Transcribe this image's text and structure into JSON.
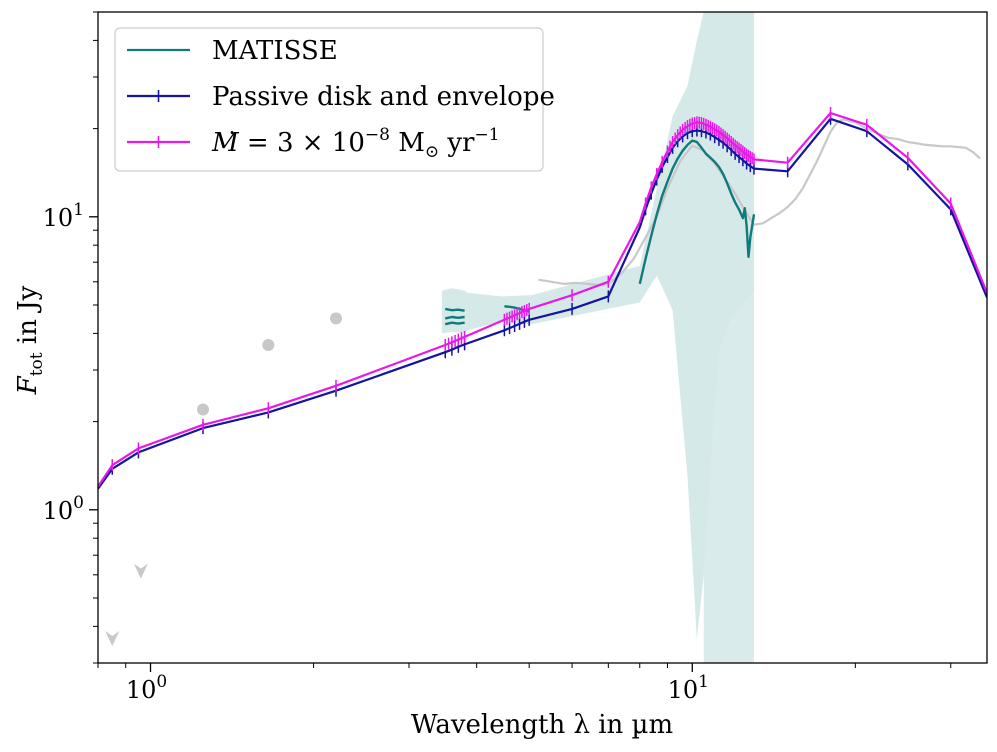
{
  "chart_data": {
    "type": "line",
    "xscale": "log",
    "yscale": "log",
    "xlim": [
      0.8,
      35
    ],
    "ylim": [
      0.3,
      50
    ],
    "xlabel": "Wavelength λ in µm",
    "ylabel": "F_tot in Jy",
    "ylabel_main": "F",
    "ylabel_sub": "tot",
    "ylabel_rest": " in Jy",
    "xticks": [
      {
        "value": 1,
        "base": "10",
        "exp": "0"
      },
      {
        "value": 10,
        "base": "10",
        "exp": "1"
      }
    ],
    "yticks": [
      {
        "value": 1,
        "base": "10",
        "exp": "0"
      },
      {
        "value": 10,
        "base": "10",
        "exp": "1"
      }
    ],
    "legend": {
      "location": "upper-left",
      "entries": [
        {
          "label": "MATISSE",
          "color": "#117a7a",
          "marker": "none"
        },
        {
          "label": "Passive disk and envelope",
          "color": "#1414a0",
          "marker": "|"
        },
        {
          "label_parts": [
            "M",
            "̇ = 3 × 10",
            "−8",
            " M",
            "⊙",
            " yr",
            "−1"
          ],
          "color": "#e818e8",
          "marker": "|"
        }
      ]
    },
    "colors": {
      "matisse": "#117a7a",
      "matisse_band": "#d5e9e9",
      "passive": "#1414a0",
      "accretion": "#e818e8",
      "observed": "#c8c8c8"
    },
    "series": [
      {
        "name": "Passive disk and envelope",
        "color": "#1414a0",
        "segments": [
          [
            [
              0.8,
              1.18
            ],
            [
              0.85,
              1.38
            ],
            [
              0.95,
              1.57
            ],
            [
              1.25,
              1.9
            ],
            [
              1.65,
              2.15
            ],
            [
              2.2,
              2.55
            ],
            [
              3.5,
              3.45
            ],
            [
              3.6,
              3.52
            ],
            [
              3.7,
              3.6
            ],
            [
              3.8,
              3.67
            ],
            [
              4.5,
              4.1
            ],
            [
              4.6,
              4.17
            ],
            [
              4.7,
              4.24
            ],
            [
              4.8,
              4.31
            ],
            [
              4.9,
              4.38
            ],
            [
              5.0,
              4.45
            ],
            [
              6.0,
              4.85
            ],
            [
              7.0,
              5.35
            ],
            [
              8.0,
              9.2
            ],
            [
              8.2,
              10.6
            ],
            [
              8.4,
              12.0
            ],
            [
              8.6,
              13.4
            ],
            [
              8.8,
              14.8
            ],
            [
              9.0,
              16.0
            ],
            [
              9.2,
              17.2
            ],
            [
              9.4,
              18.1
            ],
            [
              9.6,
              18.8
            ],
            [
              9.8,
              19.3
            ],
            [
              10.0,
              19.6
            ],
            [
              10.2,
              19.7
            ],
            [
              10.4,
              19.6
            ],
            [
              10.6,
              19.4
            ],
            [
              10.8,
              19.1
            ],
            [
              11.0,
              18.7
            ],
            [
              11.2,
              18.3
            ],
            [
              11.4,
              17.9
            ],
            [
              11.6,
              17.4
            ],
            [
              11.8,
              16.9
            ],
            [
              12.0,
              16.4
            ],
            [
              12.2,
              16.0
            ],
            [
              12.4,
              15.6
            ],
            [
              12.6,
              15.2
            ],
            [
              12.8,
              14.9
            ],
            [
              13.0,
              14.6
            ],
            [
              15.0,
              14.3
            ],
            [
              18.0,
              21.6
            ],
            [
              21.0,
              19.6
            ],
            [
              25.0,
              15.1
            ],
            [
              30.0,
              10.6
            ],
            [
              35.0,
              5.3
            ]
          ]
        ],
        "ticks": [
          0.85,
          0.95,
          1.25,
          1.65,
          2.2,
          3.5,
          3.6,
          3.7,
          3.8,
          4.5,
          4.6,
          4.7,
          4.8,
          4.9,
          5.0,
          6.0,
          7.0,
          8.2,
          8.4,
          8.6,
          8.8,
          9.0,
          9.2,
          9.4,
          9.6,
          9.8,
          10.0,
          10.2,
          10.4,
          10.6,
          10.8,
          11.0,
          11.2,
          11.4,
          11.6,
          11.8,
          12.0,
          12.2,
          12.4,
          12.6,
          12.8,
          13.0,
          15.0,
          18.0,
          21.0,
          25.0,
          30.0
        ]
      },
      {
        "name": "Ṁ = 3 × 10⁻⁸ M⊙ yr⁻¹",
        "color": "#e818e8",
        "segments": [
          [
            [
              0.8,
              1.2
            ],
            [
              0.85,
              1.42
            ],
            [
              0.95,
              1.62
            ],
            [
              1.25,
              1.95
            ],
            [
              1.65,
              2.22
            ],
            [
              2.2,
              2.65
            ],
            [
              3.5,
              3.65
            ],
            [
              3.6,
              3.73
            ],
            [
              3.7,
              3.81
            ],
            [
              3.8,
              3.89
            ],
            [
              4.5,
              4.45
            ],
            [
              4.6,
              4.53
            ],
            [
              4.7,
              4.61
            ],
            [
              4.8,
              4.69
            ],
            [
              4.9,
              4.77
            ],
            [
              5.0,
              4.85
            ],
            [
              6.0,
              5.4
            ],
            [
              7.0,
              6.0
            ],
            [
              8.0,
              9.6
            ],
            [
              8.2,
              11.1
            ],
            [
              8.4,
              12.6
            ],
            [
              8.6,
              14.0
            ],
            [
              8.8,
              15.4
            ],
            [
              9.0,
              16.7
            ],
            [
              9.2,
              18.0
            ],
            [
              9.4,
              19.0
            ],
            [
              9.6,
              19.8
            ],
            [
              9.8,
              20.4
            ],
            [
              10.0,
              20.8
            ],
            [
              10.2,
              21.0
            ],
            [
              10.4,
              20.9
            ],
            [
              10.6,
              20.6
            ],
            [
              10.8,
              20.3
            ],
            [
              11.0,
              19.9
            ],
            [
              11.2,
              19.5
            ],
            [
              11.4,
              19.0
            ],
            [
              11.6,
              18.5
            ],
            [
              11.8,
              18.0
            ],
            [
              12.0,
              17.5
            ],
            [
              12.2,
              17.1
            ],
            [
              12.4,
              16.7
            ],
            [
              12.6,
              16.3
            ],
            [
              12.8,
              16.0
            ],
            [
              13.0,
              15.7
            ],
            [
              15.0,
              15.3
            ],
            [
              18.0,
              22.6
            ],
            [
              21.0,
              20.6
            ],
            [
              25.0,
              15.9
            ],
            [
              30.0,
              11.1
            ],
            [
              35.0,
              5.5
            ]
          ]
        ],
        "ticks": [
          0.85,
          0.95,
          1.25,
          1.65,
          2.2,
          3.5,
          3.55,
          3.6,
          3.65,
          3.7,
          3.75,
          3.8,
          4.5,
          4.55,
          4.6,
          4.65,
          4.7,
          4.75,
          4.8,
          4.85,
          4.9,
          4.95,
          5.0,
          6.0,
          7.0,
          8.2,
          8.4,
          8.6,
          8.8,
          9.0,
          9.1,
          9.2,
          9.3,
          9.4,
          9.5,
          9.6,
          9.7,
          9.8,
          9.9,
          10.0,
          10.1,
          10.2,
          10.3,
          10.4,
          10.5,
          10.6,
          10.7,
          10.8,
          10.9,
          11.0,
          11.1,
          11.2,
          11.3,
          11.4,
          11.5,
          11.6,
          11.7,
          11.8,
          11.9,
          12.0,
          12.1,
          12.2,
          12.3,
          12.4,
          12.5,
          12.6,
          12.7,
          12.8,
          12.9,
          13.0,
          15.0,
          18.0,
          21.0,
          25.0,
          30.0
        ]
      },
      {
        "name": "MATISSE",
        "color": "#117a7a",
        "segments": [
          [
            [
              3.5,
              4.85
            ],
            [
              3.6,
              4.8
            ],
            [
              3.7,
              4.82
            ],
            [
              3.8,
              4.78
            ]
          ],
          [
            [
              3.5,
              4.5
            ],
            [
              3.6,
              4.55
            ],
            [
              3.7,
              4.52
            ],
            [
              3.8,
              4.55
            ]
          ],
          [
            [
              3.5,
              4.3
            ],
            [
              3.6,
              4.35
            ],
            [
              3.7,
              4.32
            ],
            [
              3.8,
              4.35
            ]
          ],
          [
            [
              4.5,
              4.95
            ],
            [
              4.6,
              4.93
            ],
            [
              4.7,
              4.9
            ],
            [
              4.8,
              4.85
            ],
            [
              4.9,
              4.8
            ],
            [
              5.0,
              4.75
            ]
          ],
          [
            [
              8.0,
              5.9
            ],
            [
              8.2,
              7.2
            ],
            [
              8.4,
              8.6
            ],
            [
              8.6,
              10.2
            ],
            [
              8.8,
              11.8
            ],
            [
              9.0,
              13.2
            ],
            [
              9.2,
              14.6
            ],
            [
              9.4,
              15.8
            ],
            [
              9.6,
              16.8
            ],
            [
              9.8,
              17.6
            ],
            [
              10.0,
              18.2
            ],
            [
              10.2,
              18.0
            ],
            [
              10.4,
              17.2
            ],
            [
              10.6,
              16.4
            ],
            [
              10.8,
              15.9
            ],
            [
              11.0,
              15.4
            ],
            [
              11.2,
              14.8
            ],
            [
              11.4,
              14.0
            ],
            [
              11.6,
              13.0
            ],
            [
              11.8,
              12.0
            ],
            [
              12.0,
              11.2
            ],
            [
              12.2,
              10.6
            ],
            [
              12.4,
              9.9
            ],
            [
              12.5,
              10.7
            ],
            [
              12.6,
              9.3
            ],
            [
              12.7,
              7.3
            ],
            [
              12.8,
              8.5
            ],
            [
              13.0,
              10.2
            ]
          ]
        ]
      },
      {
        "name": "Observed spectrum",
        "color": "#c8c8c8",
        "segments": [
          [
            [
              5.2,
              6.1
            ],
            [
              5.5,
              6.0
            ],
            [
              5.8,
              5.9
            ],
            [
              6.1,
              5.95
            ],
            [
              6.4,
              5.9
            ],
            [
              6.7,
              5.85
            ],
            [
              7.0,
              5.9
            ],
            [
              7.4,
              6.4
            ],
            [
              7.8,
              7.2
            ],
            [
              8.2,
              8.5
            ],
            [
              8.6,
              10.0
            ],
            [
              9.0,
              12.5
            ],
            [
              9.5,
              15.5
            ],
            [
              10.0,
              17.5
            ],
            [
              10.5,
              16.8
            ],
            [
              11.0,
              15.2
            ],
            [
              11.5,
              13.5
            ],
            [
              12.0,
              12.0
            ],
            [
              12.5,
              10.5
            ],
            [
              13.0,
              9.4
            ],
            [
              13.5,
              9.5
            ],
            [
              14.0,
              9.9
            ],
            [
              14.5,
              10.3
            ],
            [
              15.0,
              10.8
            ],
            [
              15.5,
              11.5
            ],
            [
              16.0,
              12.5
            ],
            [
              17.0,
              15.5
            ],
            [
              18.0,
              19.5
            ],
            [
              18.5,
              21.0
            ],
            [
              19.0,
              21.5
            ],
            [
              20.0,
              21.0
            ],
            [
              21.0,
              20.0
            ],
            [
              22.0,
              19.2
            ],
            [
              23.0,
              18.6
            ],
            [
              24.0,
              18.4
            ],
            [
              25.0,
              18.0
            ],
            [
              26.0,
              17.8
            ],
            [
              27.0,
              17.6
            ],
            [
              28.0,
              17.5
            ],
            [
              29.0,
              17.4
            ],
            [
              30.0,
              17.4
            ],
            [
              31.0,
              17.3
            ],
            [
              32.0,
              17.2
            ],
            [
              33.0,
              16.6
            ],
            [
              34.0,
              15.8
            ]
          ]
        ]
      }
    ],
    "matisse_band": {
      "lower": [
        [
          3.45,
          4.0
        ],
        [
          3.6,
          4.05
        ],
        [
          3.8,
          4.0
        ],
        [
          3.85,
          4.1
        ],
        [
          4.45,
          4.4
        ],
        [
          5.0,
          4.3
        ],
        [
          5.05,
          4.3
        ],
        [
          8.0,
          5.1
        ],
        [
          8.6,
          6.3
        ],
        [
          9.2,
          4.8
        ],
        [
          9.8,
          1.3
        ],
        [
          10.2,
          0.36
        ],
        [
          10.5,
          0.6
        ],
        [
          10.8,
          1.4
        ],
        [
          11.2,
          3.5
        ],
        [
          11.8,
          4.5
        ],
        [
          12.5,
          5.2
        ],
        [
          13.0,
          5.6
        ]
      ],
      "upper": [
        [
          3.45,
          5.6
        ],
        [
          3.6,
          5.7
        ],
        [
          3.8,
          5.6
        ],
        [
          3.85,
          5.5
        ],
        [
          4.45,
          5.35
        ],
        [
          5.0,
          5.4
        ],
        [
          5.05,
          5.4
        ],
        [
          8.0,
          6.8
        ],
        [
          8.6,
          12.5
        ],
        [
          9.2,
          22.0
        ],
        [
          9.8,
          28.0
        ],
        [
          10.2,
          40.0
        ],
        [
          10.5,
          50
        ],
        [
          10.8,
          50
        ],
        [
          11.2,
          50
        ],
        [
          11.8,
          50
        ],
        [
          12.5,
          50
        ],
        [
          13.0,
          50
        ]
      ],
      "envelope_x": [
        10.5,
        13.0
      ]
    },
    "photometry": [
      {
        "x": 1.25,
        "y": 2.2,
        "kind": "point"
      },
      {
        "x": 1.65,
        "y": 3.65,
        "kind": "point"
      },
      {
        "x": 2.2,
        "y": 4.5,
        "kind": "point"
      },
      {
        "x": 0.96,
        "y": 0.62,
        "kind": "upper-limit"
      },
      {
        "x": 0.85,
        "y": 0.365,
        "kind": "upper-limit"
      }
    ]
  }
}
